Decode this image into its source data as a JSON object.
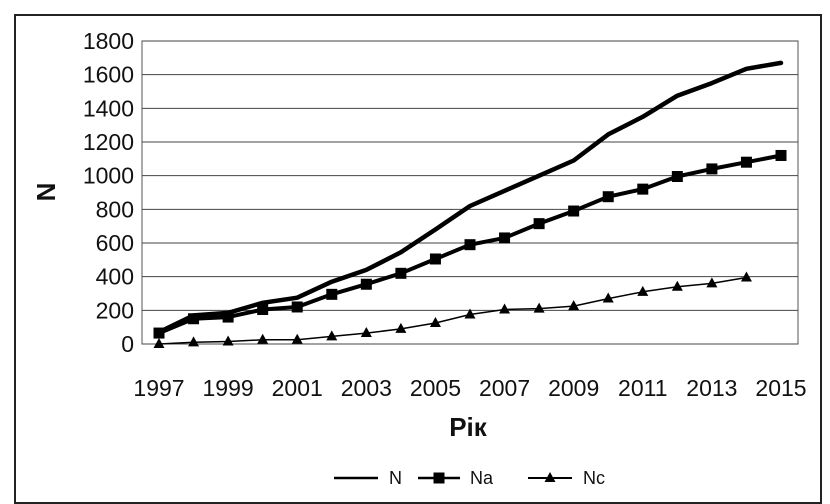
{
  "chart_data": {
    "type": "line",
    "xlabel": "Рік",
    "ylabel": "N",
    "xlim": [
      1997,
      2015
    ],
    "ylim": [
      0,
      1800
    ],
    "x_ticks": [
      1997,
      1999,
      2001,
      2003,
      2005,
      2007,
      2009,
      2011,
      2013,
      2015
    ],
    "y_ticks": [
      0,
      200,
      400,
      600,
      800,
      1000,
      1200,
      1400,
      1600,
      1800
    ],
    "grid": "horizontal",
    "legend_position": "bottom",
    "series": [
      {
        "name": "N",
        "marker": "none",
        "x": [
          1997,
          1998,
          1999,
          2000,
          2001,
          2002,
          2003,
          2004,
          2005,
          2006,
          2007,
          2008,
          2009,
          2010,
          2011,
          2012,
          2013,
          2014,
          2015
        ],
        "values": [
          70,
          170,
          185,
          245,
          275,
          370,
          440,
          545,
          680,
          820,
          910,
          1000,
          1090,
          1245,
          1350,
          1475,
          1550,
          1635,
          1670
        ]
      },
      {
        "name": "Na",
        "marker": "square",
        "x": [
          1997,
          1998,
          1999,
          2000,
          2001,
          2002,
          2003,
          2004,
          2005,
          2006,
          2007,
          2008,
          2009,
          2010,
          2011,
          2012,
          2013,
          2014,
          2015
        ],
        "values": [
          65,
          150,
          160,
          205,
          220,
          295,
          355,
          420,
          505,
          590,
          630,
          715,
          790,
          875,
          920,
          995,
          1040,
          1080,
          1120
        ]
      },
      {
        "name": "Nc",
        "marker": "triangle",
        "x": [
          1997,
          1998,
          1999,
          2000,
          2001,
          2002,
          2003,
          2004,
          2005,
          2006,
          2007,
          2008,
          2009,
          2010,
          2011,
          2012,
          2013,
          2014
        ],
        "values": [
          0,
          10,
          15,
          25,
          25,
          45,
          65,
          90,
          125,
          175,
          205,
          210,
          225,
          270,
          310,
          340,
          360,
          395
        ]
      }
    ]
  }
}
